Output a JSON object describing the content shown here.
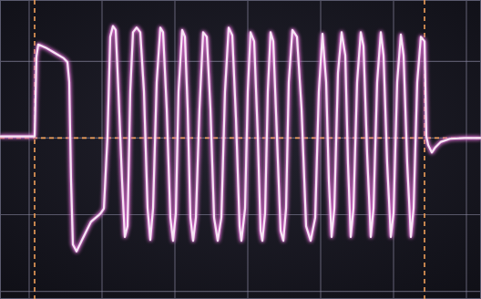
{
  "chart_data": {
    "type": "line",
    "color": "#f6e6f4",
    "grid": true,
    "tick_labels": false,
    "xlim": [
      -0.4,
      6.2
    ],
    "ylim": [
      -2.1,
      1.8
    ],
    "xticks": [
      0,
      1,
      2,
      3,
      4,
      5,
      6
    ],
    "yticks": [
      -2,
      -1,
      0,
      1
    ],
    "cursors": {
      "x": [
        0.075,
        5.425
      ],
      "y": [
        0
      ]
    },
    "x": [
      -0.4,
      0.05,
      0.075,
      0.1,
      0.125,
      0.225,
      0.35,
      0.475,
      0.525,
      0.55,
      0.575,
      0.6,
      0.65,
      0.725,
      0.85,
      0.975,
      1.025,
      1.075,
      1.1125,
      1.15,
      1.1875,
      1.225,
      1.275,
      1.3125,
      1.35,
      1.3875,
      1.425,
      1.475,
      1.525,
      1.575,
      1.625,
      1.6625,
      1.7,
      1.75,
      1.8,
      1.8375,
      1.8875,
      1.9375,
      1.975,
      2.0125,
      2.05,
      2.1,
      2.1375,
      2.175,
      2.2125,
      2.25,
      2.2875,
      2.3375,
      2.3875,
      2.4375,
      2.4875,
      2.5375,
      2.5875,
      2.6375,
      2.6875,
      2.7375,
      2.7875,
      2.8375,
      2.8875,
      2.9125,
      2.9625,
      3.0,
      3.0375,
      3.0875,
      3.1375,
      3.175,
      3.2,
      3.2375,
      3.275,
      3.3125,
      3.35,
      3.4,
      3.45,
      3.4875,
      3.525,
      3.5625,
      3.6125,
      3.675,
      3.7375,
      3.8,
      3.8625,
      3.925,
      3.975,
      4.025,
      4.075,
      4.1125,
      4.15,
      4.1875,
      4.2375,
      4.2875,
      4.3375,
      4.375,
      4.4125,
      4.45,
      4.5,
      4.55,
      4.5875,
      4.6375,
      4.6875,
      4.725,
      4.775,
      4.825,
      4.8625,
      4.9125,
      4.9625,
      5.0,
      5.05,
      5.1,
      5.1375,
      5.1875,
      5.2375,
      5.275,
      5.325,
      5.375,
      5.425,
      5.45,
      5.475,
      5.525,
      5.575,
      5.65,
      5.775,
      5.975,
      6.2
    ],
    "values": [
      0.02,
      0.02,
      0.02,
      1.06,
      1.22,
      1.18,
      1.11,
      1.04,
      0.99,
      0.73,
      -0.56,
      -1.39,
      -1.48,
      -1.33,
      -1.09,
      -0.99,
      -0.92,
      0.02,
      1.32,
      1.46,
      1.41,
      0.61,
      -0.56,
      -1.29,
      -1.15,
      0.61,
      1.38,
      1.44,
      1.38,
      0.61,
      -0.92,
      -1.33,
      -0.92,
      0.73,
      1.44,
      1.38,
      0.38,
      -1.04,
      -1.34,
      -0.98,
      0.61,
      1.41,
      1.32,
      0.38,
      -1.04,
      -1.34,
      -1.04,
      0.38,
      1.38,
      1.32,
      0.38,
      -1.04,
      -1.34,
      -1.04,
      0.61,
      1.44,
      1.34,
      0.26,
      -1.15,
      -1.34,
      -0.92,
      0.61,
      1.38,
      1.26,
      0.02,
      -1.21,
      -1.34,
      -0.98,
      0.61,
      1.38,
      1.26,
      0.02,
      -1.21,
      -1.34,
      -0.92,
      0.73,
      1.41,
      1.32,
      0.38,
      -1.15,
      -1.34,
      -1.04,
      0.61,
      1.36,
      0.73,
      -0.56,
      -1.29,
      -0.92,
      0.85,
      1.38,
      1.08,
      -0.33,
      -1.29,
      -0.92,
      0.73,
      1.38,
      1.2,
      -0.21,
      -1.29,
      -0.92,
      0.73,
      1.38,
      1.08,
      -0.33,
      -1.29,
      -0.98,
      0.73,
      1.35,
      1.08,
      -0.33,
      -1.29,
      -0.92,
      0.73,
      1.32,
      1.26,
      0.02,
      -0.09,
      -0.19,
      -0.12,
      -0.05,
      -0.01,
      0,
      0
    ]
  }
}
